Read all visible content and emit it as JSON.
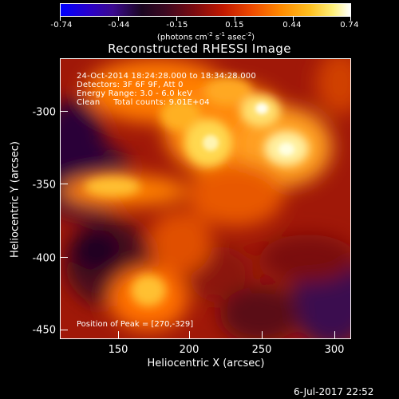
{
  "colorbar": {
    "ticks": [
      "-0.74",
      "-0.44",
      "-0.15",
      "0.15",
      "0.44",
      "0.74"
    ],
    "units": "(photons cm",
    "units_exp1": "-2",
    "units_mid": " s",
    "units_exp2": "-1",
    "units_mid2": " asec",
    "units_exp3": "-2",
    "units_end": ")"
  },
  "title": "Reconstructed RHESSI Image",
  "info": {
    "line1": "24-Oct-2014 18:24:28.000 to 18:34:28.000",
    "line2": "Detectors: 3F 6F 9F, Att 0",
    "line3": "Energy Range: 3.0 - 6.0 keV",
    "line4": "Clean     Total counts: 9.01E+04"
  },
  "peak": "Position of Peak = [270,-329]",
  "x_axis": {
    "label": "Heliocentric X (arcsec)",
    "ticks": [
      "150",
      "200",
      "250",
      "300"
    ],
    "range": [
      110,
      300
    ]
  },
  "y_axis": {
    "label": "Heliocentric Y (arcsec)",
    "ticks": [
      "-300",
      "-350",
      "-400",
      "-450"
    ],
    "range": [
      -455,
      -275
    ]
  },
  "date_stamp": "6-Jul-2017 22:52"
}
